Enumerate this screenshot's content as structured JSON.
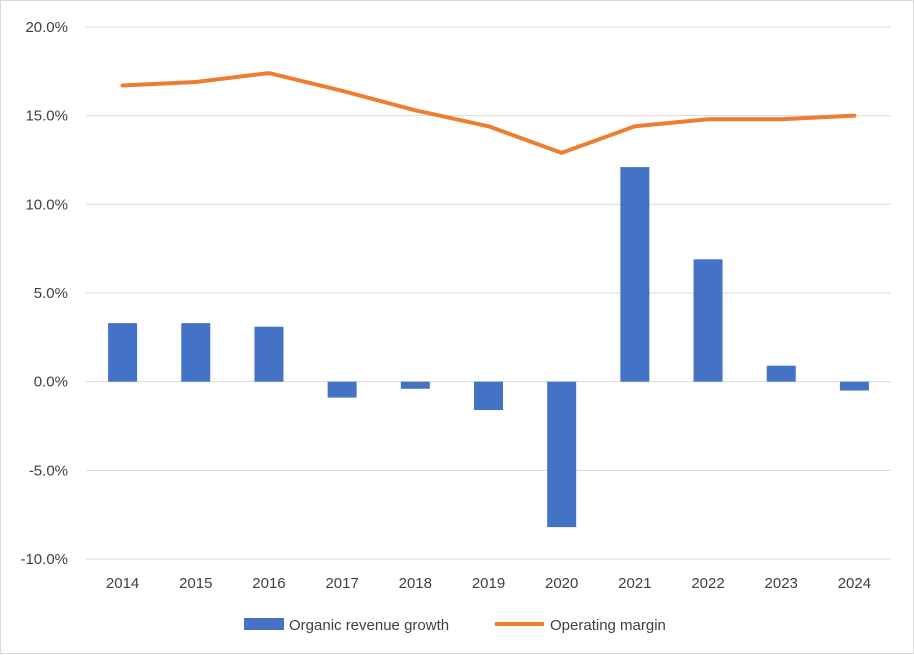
{
  "chart_data": {
    "type": "bar+line",
    "categories": [
      "2014",
      "2015",
      "2016",
      "2017",
      "2018",
      "2019",
      "2020",
      "2021",
      "2022",
      "2023",
      "2024"
    ],
    "series": [
      {
        "name": "Organic revenue growth",
        "type": "bar",
        "color": "#4472C4",
        "values": [
          3.3,
          3.3,
          3.1,
          -0.9,
          -0.4,
          -1.6,
          -8.2,
          12.1,
          6.9,
          0.9,
          -0.5
        ]
      },
      {
        "name": "Operating margin",
        "type": "line",
        "color": "#ED7D31",
        "values": [
          16.7,
          16.9,
          17.4,
          16.4,
          15.3,
          14.4,
          12.9,
          14.4,
          14.8,
          14.8,
          15.0
        ]
      }
    ],
    "y_ticks": [
      "20.0%",
      "15.0%",
      "10.0%",
      "5.0%",
      "0.0%",
      "-5.0%",
      "-10.0%"
    ],
    "ylim": [
      -10,
      20
    ],
    "y_step": 5,
    "gridlines": true,
    "legend_position": "bottom",
    "title": "",
    "xlabel": "",
    "ylabel": ""
  }
}
